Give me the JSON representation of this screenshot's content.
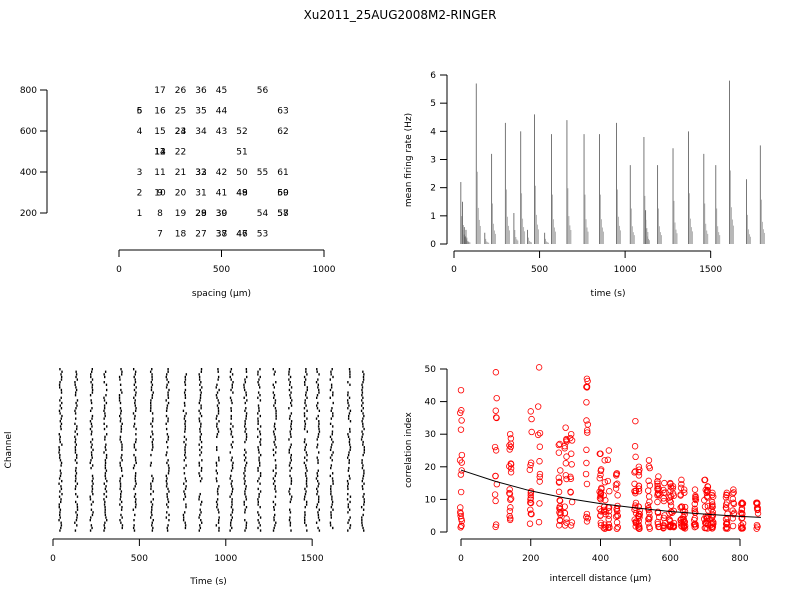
{
  "title": "Xu2011_25AUG2008M2-RINGER",
  "chart_data": [
    {
      "id": "layout",
      "type": "scatter",
      "xlabel": "spacing (µm)",
      "ylabel": "",
      "xlim": [
        0,
        1000
      ],
      "ylim": [
        100,
        900
      ],
      "xticks": [
        "0",
        "500",
        "1000"
      ],
      "yticks": [
        "200",
        "400",
        "600",
        "800"
      ],
      "points": [
        {
          "x": 100,
          "y": 200,
          "label": "1"
        },
        {
          "x": 100,
          "y": 300,
          "label": "2"
        },
        {
          "x": 100,
          "y": 400,
          "label": "3"
        },
        {
          "x": 100,
          "y": 600,
          "label": "4"
        },
        {
          "x": 100,
          "y": 700,
          "label": "5"
        },
        {
          "x": 100,
          "y": 700,
          "label": "6"
        },
        {
          "x": 200,
          "y": 100,
          "label": "7"
        },
        {
          "x": 200,
          "y": 200,
          "label": "8"
        },
        {
          "x": 200,
          "y": 300,
          "label": "9"
        },
        {
          "x": 200,
          "y": 300,
          "label": "10"
        },
        {
          "x": 200,
          "y": 400,
          "label": "11"
        },
        {
          "x": 200,
          "y": 500,
          "label": "12"
        },
        {
          "x": 200,
          "y": 500,
          "label": "13"
        },
        {
          "x": 200,
          "y": 500,
          "label": "14"
        },
        {
          "x": 200,
          "y": 600,
          "label": "15"
        },
        {
          "x": 200,
          "y": 700,
          "label": "16"
        },
        {
          "x": 200,
          "y": 800,
          "label": "17"
        },
        {
          "x": 300,
          "y": 100,
          "label": "18"
        },
        {
          "x": 300,
          "y": 200,
          "label": "19"
        },
        {
          "x": 300,
          "y": 300,
          "label": "20"
        },
        {
          "x": 300,
          "y": 400,
          "label": "21"
        },
        {
          "x": 300,
          "y": 500,
          "label": "22"
        },
        {
          "x": 300,
          "y": 600,
          "label": "23"
        },
        {
          "x": 300,
          "y": 600,
          "label": "24"
        },
        {
          "x": 300,
          "y": 700,
          "label": "25"
        },
        {
          "x": 300,
          "y": 800,
          "label": "26"
        },
        {
          "x": 400,
          "y": 100,
          "label": "27"
        },
        {
          "x": 400,
          "y": 200,
          "label": "28"
        },
        {
          "x": 400,
          "y": 200,
          "label": "29"
        },
        {
          "x": 400,
          "y": 300,
          "label": "31"
        },
        {
          "x": 400,
          "y": 400,
          "label": "32"
        },
        {
          "x": 400,
          "y": 400,
          "label": "33"
        },
        {
          "x": 400,
          "y": 600,
          "label": "34"
        },
        {
          "x": 400,
          "y": 700,
          "label": "35"
        },
        {
          "x": 400,
          "y": 800,
          "label": "36"
        },
        {
          "x": 500,
          "y": 100,
          "label": "37"
        },
        {
          "x": 500,
          "y": 100,
          "label": "38"
        },
        {
          "x": 500,
          "y": 200,
          "label": "39"
        },
        {
          "x": 500,
          "y": 200,
          "label": "30"
        },
        {
          "x": 500,
          "y": 300,
          "label": "41"
        },
        {
          "x": 500,
          "y": 400,
          "label": "42"
        },
        {
          "x": 500,
          "y": 600,
          "label": "43"
        },
        {
          "x": 500,
          "y": 700,
          "label": "44"
        },
        {
          "x": 500,
          "y": 800,
          "label": "45"
        },
        {
          "x": 600,
          "y": 100,
          "label": "46"
        },
        {
          "x": 600,
          "y": 100,
          "label": "47"
        },
        {
          "x": 600,
          "y": 300,
          "label": "48"
        },
        {
          "x": 600,
          "y": 300,
          "label": "49"
        },
        {
          "x": 600,
          "y": 400,
          "label": "50"
        },
        {
          "x": 600,
          "y": 500,
          "label": "51"
        },
        {
          "x": 600,
          "y": 600,
          "label": "52"
        },
        {
          "x": 700,
          "y": 100,
          "label": "53"
        },
        {
          "x": 700,
          "y": 200,
          "label": "54"
        },
        {
          "x": 700,
          "y": 400,
          "label": "55"
        },
        {
          "x": 700,
          "y": 800,
          "label": "56"
        },
        {
          "x": 800,
          "y": 200,
          "label": "57"
        },
        {
          "x": 800,
          "y": 200,
          "label": "58"
        },
        {
          "x": 800,
          "y": 300,
          "label": "59"
        },
        {
          "x": 800,
          "y": 300,
          "label": "60"
        },
        {
          "x": 800,
          "y": 400,
          "label": "61"
        },
        {
          "x": 800,
          "y": 600,
          "label": "62"
        },
        {
          "x": 800,
          "y": 700,
          "label": "63"
        }
      ]
    },
    {
      "id": "rate",
      "type": "line",
      "xlabel": "time (s)",
      "ylabel": "mean firing rate (Hz)",
      "xlim": [
        0,
        1800
      ],
      "ylim": [
        0,
        6
      ],
      "xticks": [
        "0",
        "500",
        "1000",
        "1500"
      ],
      "yticks": [
        "0",
        "1",
        "2",
        "3",
        "4",
        "5",
        "6"
      ],
      "peaks": [
        {
          "t": 40,
          "v": 2.2
        },
        {
          "t": 50,
          "v": 1.5
        },
        {
          "t": 60,
          "v": 0.6
        },
        {
          "t": 70,
          "v": 0.5
        },
        {
          "t": 130,
          "v": 5.7
        },
        {
          "t": 180,
          "v": 0.4
        },
        {
          "t": 220,
          "v": 3.2
        },
        {
          "t": 300,
          "v": 4.3
        },
        {
          "t": 350,
          "v": 1.1
        },
        {
          "t": 390,
          "v": 4.0
        },
        {
          "t": 430,
          "v": 0.5
        },
        {
          "t": 470,
          "v": 4.6
        },
        {
          "t": 530,
          "v": 0.4
        },
        {
          "t": 570,
          "v": 3.9
        },
        {
          "t": 660,
          "v": 4.4
        },
        {
          "t": 760,
          "v": 3.9
        },
        {
          "t": 850,
          "v": 3.9
        },
        {
          "t": 950,
          "v": 4.3
        },
        {
          "t": 1030,
          "v": 2.8
        },
        {
          "t": 1110,
          "v": 3.8
        },
        {
          "t": 1120,
          "v": 1.2
        },
        {
          "t": 1190,
          "v": 2.8
        },
        {
          "t": 1280,
          "v": 3.4
        },
        {
          "t": 1370,
          "v": 4.0
        },
        {
          "t": 1460,
          "v": 3.2
        },
        {
          "t": 1530,
          "v": 2.8
        },
        {
          "t": 1610,
          "v": 5.8
        },
        {
          "t": 1710,
          "v": 2.3
        },
        {
          "t": 1790,
          "v": 3.5
        }
      ]
    },
    {
      "id": "raster",
      "type": "scatter",
      "xlabel": "Time (s)",
      "ylabel": "Channel",
      "xlim": [
        0,
        1800
      ],
      "xticks": [
        "0",
        "500",
        "1000",
        "1500"
      ],
      "burst_times": [
        40,
        130,
        220,
        300,
        390,
        470,
        570,
        660,
        760,
        850,
        950,
        1030,
        1110,
        1190,
        1280,
        1370,
        1460,
        1530,
        1610,
        1710,
        1790
      ],
      "channels": 63
    },
    {
      "id": "correlation",
      "type": "scatter",
      "xlabel": "intercell distance (µm)",
      "ylabel": "correlation index",
      "xlim": [
        0,
        860
      ],
      "ylim": [
        0,
        50
      ],
      "xticks": [
        "0",
        "200",
        "400",
        "600",
        "800"
      ],
      "yticks": [
        "0",
        "10",
        "20",
        "30",
        "40",
        "50"
      ],
      "point_color": "#ff0000",
      "fit": {
        "x": [
          0,
          100,
          200,
          300,
          400,
          500,
          600,
          700,
          800,
          860
        ],
        "y": [
          19,
          15.5,
          12.6,
          10.4,
          8.7,
          7.4,
          6.3,
          5.5,
          4.8,
          4.5
        ]
      },
      "columns": [
        {
          "x": 0,
          "ymin": 1,
          "ymax": 43.5
        },
        {
          "x": 100,
          "ymin": 1,
          "ymax": 49
        },
        {
          "x": 141,
          "ymin": 3,
          "ymax": 30
        },
        {
          "x": 200,
          "ymin": 2,
          "ymax": 37
        },
        {
          "x": 224,
          "ymin": 2,
          "ymax": 50.5
        },
        {
          "x": 283,
          "ymin": 2,
          "ymax": 27
        },
        {
          "x": 300,
          "ymin": 2,
          "ymax": 32
        },
        {
          "x": 316,
          "ymin": 2,
          "ymax": 30
        },
        {
          "x": 361,
          "ymin": 2,
          "ymax": 47
        },
        {
          "x": 400,
          "ymin": 1,
          "ymax": 24
        },
        {
          "x": 412,
          "ymin": 1,
          "ymax": 22
        },
        {
          "x": 424,
          "ymin": 1,
          "ymax": 25
        },
        {
          "x": 447,
          "ymin": 1,
          "ymax": 18
        },
        {
          "x": 500,
          "ymin": 1,
          "ymax": 34
        },
        {
          "x": 510,
          "ymin": 1,
          "ymax": 20
        },
        {
          "x": 539,
          "ymin": 1,
          "ymax": 22
        },
        {
          "x": 566,
          "ymin": 1,
          "ymax": 17
        },
        {
          "x": 583,
          "ymin": 1,
          "ymax": 15
        },
        {
          "x": 600,
          "ymin": 1,
          "ymax": 15
        },
        {
          "x": 608,
          "ymin": 1,
          "ymax": 14
        },
        {
          "x": 632,
          "ymin": 1,
          "ymax": 16
        },
        {
          "x": 640,
          "ymin": 1,
          "ymax": 13
        },
        {
          "x": 671,
          "ymin": 1,
          "ymax": 13
        },
        {
          "x": 700,
          "ymin": 1,
          "ymax": 16
        },
        {
          "x": 707,
          "ymin": 1,
          "ymax": 14
        },
        {
          "x": 721,
          "ymin": 1,
          "ymax": 12
        },
        {
          "x": 762,
          "ymin": 1,
          "ymax": 12
        },
        {
          "x": 781,
          "ymin": 1,
          "ymax": 13
        },
        {
          "x": 806,
          "ymin": 1,
          "ymax": 9
        },
        {
          "x": 849,
          "ymin": 1,
          "ymax": 9
        }
      ]
    }
  ]
}
